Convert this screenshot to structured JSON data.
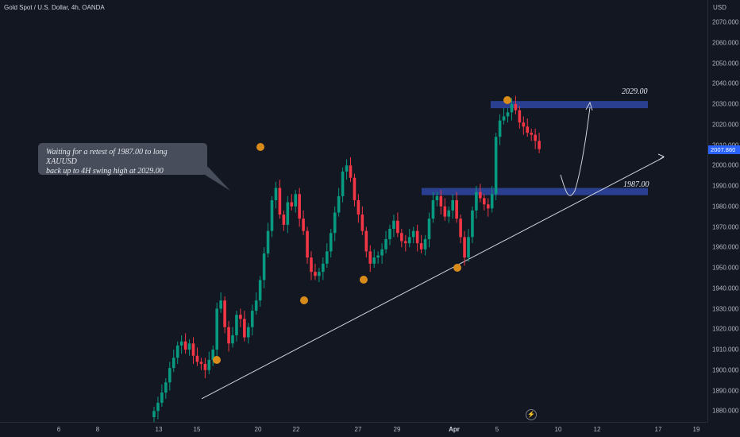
{
  "symbol": {
    "title": "Gold Spot / U.S. Dollar, 4h, OANDA"
  },
  "price_axis": {
    "currency": "USD",
    "ticks": [
      "2070.000",
      "2060.000",
      "2050.000",
      "2040.000",
      "2030.000",
      "2020.000",
      "2010.000",
      "2000.000",
      "1990.000",
      "1980.000",
      "1970.000",
      "1960.000",
      "1950.000",
      "1940.000",
      "1930.000",
      "1920.000",
      "1910.000",
      "1900.000",
      "1890.000",
      "1880.000"
    ],
    "current_price": "2007.860"
  },
  "time_axis": {
    "labels": [
      "6",
      "8",
      "13",
      "15",
      "20",
      "22",
      "27",
      "29",
      "Apr",
      "5",
      "10",
      "12",
      "17",
      "19"
    ],
    "bold": [
      "Apr"
    ]
  },
  "annotations": {
    "callout_line1": "Waiting for a retest of 1987.00 to long XAUUSD",
    "callout_line2": "back up to 4H swing high at 2029.00",
    "upper_zone_label": "2029.00",
    "lower_zone_label": "1987.00",
    "flash_icon": "lightning-icon"
  },
  "colors": {
    "background": "#131722",
    "up_candle": "#089981",
    "down_candle": "#f23645",
    "zone": "#2a3f8f",
    "marker": "#d98b1a",
    "price_tag": "#2962ff"
  },
  "chart_data": {
    "type": "candlestick",
    "title": "Gold Spot / U.S. Dollar, 4h, OANDA",
    "ylim": [
      1878,
      2078
    ],
    "price_ticks": [
      2070,
      2060,
      2050,
      2040,
      2030,
      2020,
      2010,
      2000,
      1990,
      1980,
      1970,
      1960,
      1950,
      1940,
      1930,
      1920,
      1910,
      1900,
      1890,
      1880
    ],
    "current_price": 2007.86,
    "horizontal_zones": [
      2029.0,
      1987.0
    ],
    "trendline": {
      "from": [
        "15",
        1886
      ],
      "to": [
        "17",
        2004
      ]
    },
    "ohlc_closes": [
      1880,
      1884,
      1889,
      1894,
      1901,
      1906,
      1912,
      1914,
      1910,
      1913,
      1907,
      1904,
      1903,
      1900,
      1905,
      1910,
      1930,
      1934,
      1921,
      1913,
      1917,
      1927,
      1925,
      1916,
      1921,
      1929,
      1934,
      1944,
      1957,
      1968,
      1983,
      1989,
      1976,
      1971,
      1982,
      1980,
      1986,
      1974,
      1968,
      1955,
      1948,
      1946,
      1948,
      1952,
      1958,
      1967,
      1977,
      1985,
      1997,
      2000,
      1994,
      1983,
      1976,
      1968,
      1958,
      1952,
      1955,
      1956,
      1959,
      1964,
      1969,
      1973,
      1967,
      1963,
      1962,
      1965,
      1968,
      1962,
      1959,
      1964,
      1974,
      1983,
      1985,
      1980,
      1975,
      1978,
      1983,
      1974,
      1965,
      1955,
      1965,
      1978,
      1987,
      1984,
      1981,
      1979,
      1986,
      2014,
      2022,
      2024,
      2026,
      2030,
      2027,
      2021,
      2019,
      2016,
      2015,
      2012,
      2008
    ]
  }
}
